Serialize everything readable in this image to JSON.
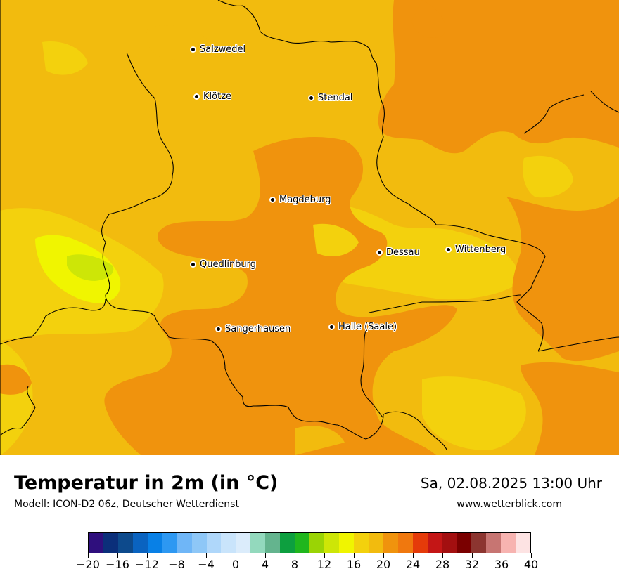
{
  "map": {
    "cities": [
      {
        "name": "Salzwedel"
      },
      {
        "name": "Klötze"
      },
      {
        "name": "Stendal"
      },
      {
        "name": "Magdeburg"
      },
      {
        "name": "Dessau"
      },
      {
        "name": "Wittenberg"
      },
      {
        "name": "Quedlinburg"
      },
      {
        "name": "Sangerhausen"
      },
      {
        "name": "Halle (Saale)"
      }
    ]
  },
  "footer": {
    "title": "Temperatur in 2m (in °C)",
    "subtitle": "Modell: ICON-D2 06z, Deutscher Wetterdienst",
    "datetime": "Sa, 02.08.2025 13:00 Uhr",
    "website": "www.wetterblick.com"
  },
  "legend": {
    "colors": [
      "#2f0f7d",
      "#0b2f7a",
      "#0d4a8c",
      "#0a63c0",
      "#0880e6",
      "#2d98f2",
      "#6fb6f7",
      "#8ec7f7",
      "#afd7fa",
      "#c9e4fb",
      "#dbecfb",
      "#93d9bd",
      "#64b48e",
      "#0d9f3f",
      "#20b61d",
      "#9ad405",
      "#cde607",
      "#f0f500",
      "#f3d10d",
      "#f2bb0e",
      "#f0930d",
      "#f0780e",
      "#e53b0a",
      "#c41616",
      "#a30f10",
      "#7a0000",
      "#8c3530",
      "#c77572",
      "#f7b3b0",
      "#fde3e3"
    ],
    "tick_labels": [
      "−20",
      "−16",
      "−12",
      "−8",
      "−4",
      "0",
      "4",
      "8",
      "12",
      "16",
      "20",
      "24",
      "28",
      "32",
      "36",
      "40"
    ]
  }
}
